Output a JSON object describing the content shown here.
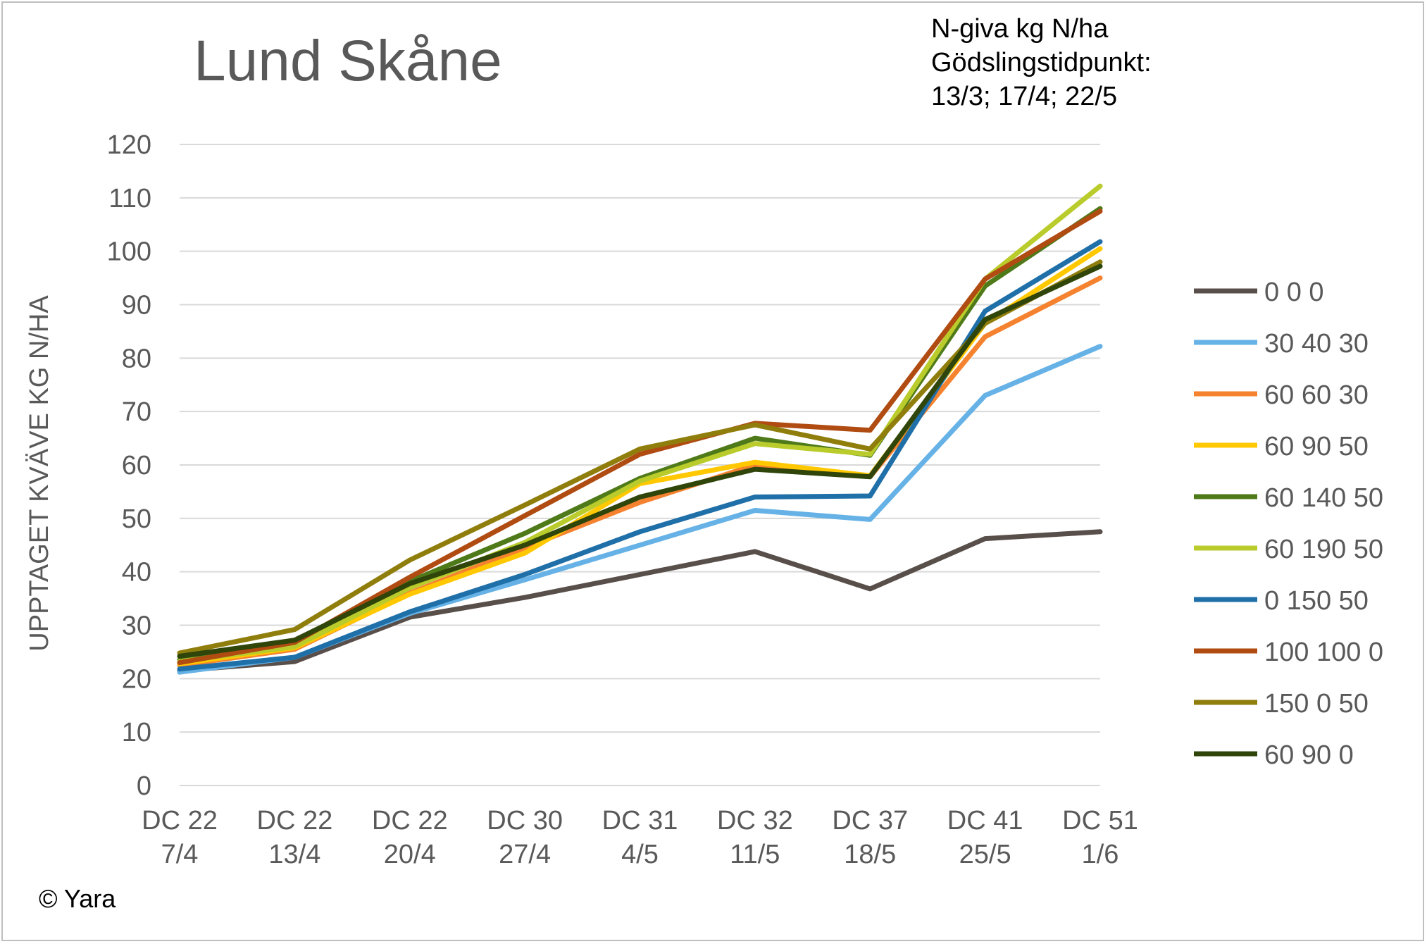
{
  "chart_data": {
    "type": "line",
    "title": "Lund Skåne",
    "annotation_lines": [
      "N-giva kg N/ha",
      "Gödslingstidpunkt:",
      "13/3; 17/4; 22/5"
    ],
    "ylabel": "UPPTAGET KVÄVE KG N/HA",
    "xlabel": "",
    "ylim": [
      0,
      120
    ],
    "yticks": [
      "0",
      "10",
      "20",
      "30",
      "40",
      "50",
      "60",
      "70",
      "80",
      "90",
      "100",
      "110",
      "120"
    ],
    "grid": true,
    "legend_position": "right",
    "categories": [
      [
        "DC 22",
        "7/4"
      ],
      [
        "DC 22",
        "13/4"
      ],
      [
        "DC 22",
        "20/4"
      ],
      [
        "DC 30",
        "27/4"
      ],
      [
        "DC 31",
        "4/5"
      ],
      [
        "DC 32",
        "11/5"
      ],
      [
        "DC 37",
        "18/5"
      ],
      [
        "DC 41",
        "25/5"
      ],
      [
        "DC 51",
        "1/6"
      ]
    ],
    "series": [
      {
        "name": "0 0 0",
        "color": "#594f4a",
        "values": [
          21.5,
          23.2,
          31.5,
          35.2,
          39.5,
          43.8,
          36.8,
          46.2,
          47.5
        ]
      },
      {
        "name": "30 40 30",
        "color": "#66b2e6",
        "values": [
          21.2,
          24.0,
          32.2,
          38.5,
          45.0,
          51.5,
          49.8,
          73.0,
          82.2
        ]
      },
      {
        "name": "60 60 30",
        "color": "#f5822f",
        "values": [
          22.5,
          25.5,
          36.0,
          44.5,
          53.0,
          60.0,
          57.8,
          84.0,
          95.0
        ]
      },
      {
        "name": "60 90 50",
        "color": "#ffc800",
        "values": [
          22.8,
          25.8,
          35.8,
          43.5,
          56.5,
          60.5,
          58.0,
          86.5,
          100.5
        ]
      },
      {
        "name": "60 140 50",
        "color": "#4f7a19",
        "values": [
          23.5,
          26.5,
          38.2,
          47.2,
          57.5,
          65.0,
          61.8,
          93.5,
          108.0
        ]
      },
      {
        "name": "60 190 50",
        "color": "#b9cc2b",
        "values": [
          23.2,
          26.0,
          37.0,
          45.5,
          57.0,
          64.0,
          62.0,
          94.8,
          112.2
        ]
      },
      {
        "name": "0 150 50",
        "color": "#1f6fa8",
        "values": [
          21.8,
          24.0,
          32.5,
          39.5,
          47.5,
          54.0,
          54.2,
          88.8,
          101.8
        ]
      },
      {
        "name": "100 100 0",
        "color": "#b04b12",
        "values": [
          23.0,
          26.8,
          39.0,
          50.5,
          62.0,
          67.8,
          66.5,
          94.8,
          107.5
        ]
      },
      {
        "name": "150 0 50",
        "color": "#8f7e0c",
        "values": [
          24.8,
          29.2,
          42.2,
          52.5,
          63.0,
          67.5,
          63.0,
          86.5,
          98.0
        ]
      },
      {
        "name": "60 90 0",
        "color": "#2f4509",
        "values": [
          24.2,
          27.2,
          37.8,
          45.0,
          54.0,
          59.2,
          57.8,
          87.2,
          97.2
        ]
      }
    ],
    "copyright": "© Yara"
  }
}
